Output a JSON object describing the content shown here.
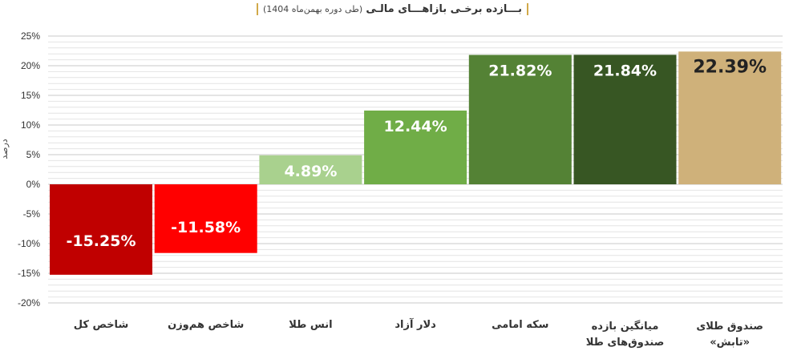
{
  "chart_data": {
    "type": "bar",
    "title": "بـــازده برخـی بازاهـــای مالـی",
    "subtitle": "(طی دوره بهمن‌ماه 1404)",
    "ylabel": "درصد",
    "ylim": [
      -20,
      25
    ],
    "yticks": [
      25,
      20,
      15,
      10,
      5,
      0,
      -5,
      -10,
      -15,
      -20
    ],
    "ytick_labels": [
      "25%",
      "20%",
      "15%",
      "10%",
      "5%",
      "0%",
      "-5%",
      "-10%",
      "-15%",
      "-20%"
    ],
    "grid": true,
    "categories": [
      "شاخص کل",
      "شاخص هم‌وزن",
      "انس طلا",
      "دلار آزاد",
      "سکه امامی",
      "میانگین بازده صندوق‌های طلا",
      "صندوق طلای «تابش»"
    ],
    "values": [
      -15.25,
      -11.58,
      4.89,
      12.44,
      21.82,
      21.84,
      22.39
    ],
    "value_labels": [
      "-15.25%",
      "-11.58%",
      "4.89%",
      "12.44%",
      "21.82%",
      "21.84%",
      "22.39%"
    ],
    "colors": [
      "#c00000",
      "#ff0000",
      "#a9d18e",
      "#70ad47",
      "#548235",
      "#375623",
      "#cfb17a"
    ],
    "label_colors": [
      "#ffffff",
      "#ffffff",
      "#ffffff",
      "#ffffff",
      "#ffffff",
      "#ffffff",
      "#222222"
    ]
  },
  "category_lines": [
    [
      "شاخص کل"
    ],
    [
      "شاخص هم‌وزن"
    ],
    [
      "انس طلا"
    ],
    [
      "دلار آزاد"
    ],
    [
      "سکه امامی"
    ],
    [
      "میانگین بازده",
      "صندوق‌های طلا"
    ],
    [
      "صندوق طلای",
      "«تابش»"
    ]
  ]
}
